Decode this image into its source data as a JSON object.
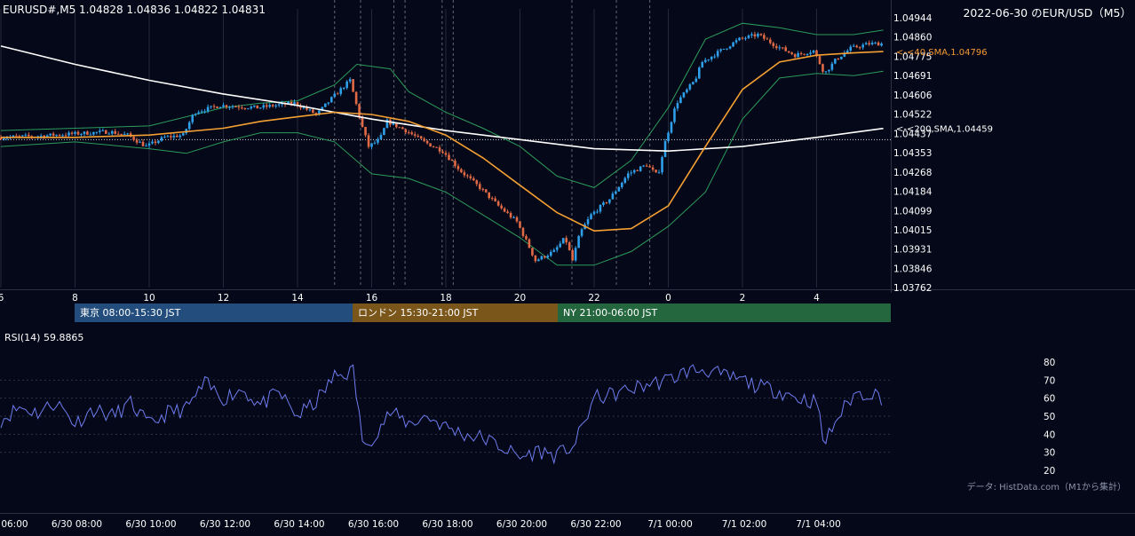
{
  "header": {
    "symbol_info": "EURUSD#,M5 1.04828 1.04836 1.04822 1.04831",
    "title": "2022-06-30 のEUR/USD（M5）"
  },
  "sessions": [
    {
      "label": "東京 08:00-15:30 JST",
      "color": "#234d7d"
    },
    {
      "label": "ロンドン 15:30-21:00 JST",
      "color": "#7a561a"
    },
    {
      "label": "NY 21:00-06:00 JST",
      "color": "#24673f"
    }
  ],
  "rsi_label": "RSI(14) 59.8865",
  "attribution": "データ: HistData.com（M1から集計）",
  "colors": {
    "background": "#050818",
    "candle_up": "#2e9fe8",
    "candle_down": "#e06a45",
    "sma40": "#f5a033",
    "sma200": "#ffffff",
    "bollinger": "#2c9c5c",
    "rsi": "#6e7cf0",
    "label_sma40": "#f59a35"
  },
  "chart_data": [
    {
      "type": "candlestick",
      "title": "2022-06-30 のEUR/USD（M5）",
      "x_tick_labels": [
        "6",
        "8",
        "10",
        "12",
        "14",
        "16",
        "18",
        "20",
        "22",
        "0",
        "2",
        "4"
      ],
      "x_axis_labels": [
        "6/30 06:00",
        "6/30 08:00",
        "6/30 10:00",
        "6/30 12:00",
        "6/30 14:00",
        "6/30 16:00",
        "6/30 18:00",
        "6/30 20:00",
        "6/30 22:00",
        "7/1 00:00",
        "7/1 02:00",
        "7/1 04:00"
      ],
      "y_tick_labels": [
        "1.04944",
        "1.04860",
        "1.04775",
        "1.04691",
        "1.04606",
        "1.04522",
        "1.04437",
        "1.04353",
        "1.04268",
        "1.04184",
        "1.04099",
        "1.04015",
        "1.03931",
        "1.03846",
        "1.03762"
      ],
      "ylim": [
        1.03762,
        1.04944
      ],
      "price_path": [
        [
          6.0,
          1.0442
        ],
        [
          7.0,
          1.04425
        ],
        [
          8.0,
          1.04435
        ],
        [
          9.0,
          1.04445
        ],
        [
          9.5,
          1.0443
        ],
        [
          10.0,
          1.0438
        ],
        [
          10.5,
          1.0442
        ],
        [
          11.0,
          1.0443
        ],
        [
          11.3,
          1.0453
        ],
        [
          12.0,
          1.0456
        ],
        [
          13.0,
          1.0455
        ],
        [
          14.0,
          1.0457
        ],
        [
          14.6,
          1.0452
        ],
        [
          15.0,
          1.0459
        ],
        [
          15.5,
          1.0467
        ],
        [
          15.8,
          1.0448
        ],
        [
          16.0,
          1.0438
        ],
        [
          16.3,
          1.0441
        ],
        [
          16.5,
          1.0449
        ],
        [
          17.0,
          1.0445
        ],
        [
          17.5,
          1.044
        ],
        [
          18.0,
          1.0436
        ],
        [
          18.5,
          1.0427
        ],
        [
          19.0,
          1.042
        ],
        [
          19.5,
          1.0412
        ],
        [
          20.0,
          1.0405
        ],
        [
          20.3,
          1.0395
        ],
        [
          20.5,
          1.0388
        ],
        [
          21.0,
          1.0392
        ],
        [
          21.3,
          1.0398
        ],
        [
          21.5,
          1.0388
        ],
        [
          21.7,
          1.04
        ],
        [
          22.0,
          1.0408
        ],
        [
          22.5,
          1.0415
        ],
        [
          23.0,
          1.0426
        ],
        [
          23.5,
          1.043
        ],
        [
          23.8,
          1.0425
        ],
        [
          24.0,
          1.044
        ],
        [
          24.3,
          1.0457
        ],
        [
          24.8,
          1.0467
        ],
        [
          25.0,
          1.0475
        ],
        [
          25.5,
          1.048
        ],
        [
          26.0,
          1.0485
        ],
        [
          26.5,
          1.0487
        ],
        [
          27.0,
          1.0482
        ],
        [
          27.5,
          1.0478
        ],
        [
          28.0,
          1.048
        ],
        [
          28.3,
          1.047
        ],
        [
          28.6,
          1.0476
        ],
        [
          29.0,
          1.0481
        ],
        [
          29.5,
          1.0483
        ],
        [
          29.8,
          1.04831
        ]
      ],
      "series": [
        {
          "name": "40,SMA",
          "last_value": 1.04796,
          "label": "<-<40,SMA,1.04796",
          "x": [
            6,
            8,
            10,
            12,
            13,
            14,
            15,
            16,
            17,
            18,
            19,
            20,
            21,
            22,
            23,
            24,
            25,
            26,
            27,
            28,
            29,
            29.8
          ],
          "values": [
            1.0442,
            1.0442,
            1.0443,
            1.0446,
            1.0449,
            1.0451,
            1.0453,
            1.0452,
            1.0449,
            1.0443,
            1.0433,
            1.0421,
            1.0409,
            1.0401,
            1.0402,
            1.0412,
            1.0438,
            1.0463,
            1.0475,
            1.0478,
            1.0479,
            1.04796
          ]
        },
        {
          "name": "200,SMA",
          "last_value": 1.04459,
          "label": "<-<200,SMA,1.04459",
          "x": [
            6,
            8,
            10,
            12,
            14,
            15,
            16,
            18,
            20,
            22,
            24,
            26,
            28,
            29.8
          ],
          "values": [
            1.0482,
            1.0474,
            1.0467,
            1.0461,
            1.0456,
            1.0453,
            1.045,
            1.0445,
            1.0441,
            1.0437,
            1.0436,
            1.0438,
            1.0442,
            1.04459
          ]
        }
      ],
      "bollinger_upper": {
        "x": [
          6,
          8,
          10,
          12,
          13,
          14,
          15,
          15.6,
          16.5,
          17,
          18,
          19,
          20,
          21,
          22,
          23,
          24,
          25,
          26,
          27,
          28,
          29,
          29.8
        ],
        "values": [
          1.0445,
          1.0446,
          1.0447,
          1.0455,
          1.0457,
          1.0458,
          1.0465,
          1.0474,
          1.0472,
          1.0462,
          1.0453,
          1.0446,
          1.0438,
          1.0425,
          1.042,
          1.0432,
          1.0455,
          1.0485,
          1.0492,
          1.049,
          1.0487,
          1.0487,
          1.0489
        ]
      },
      "bollinger_lower": {
        "x": [
          6,
          8,
          10,
          11,
          12,
          13,
          14,
          15,
          16,
          17,
          18,
          19,
          20,
          21,
          22,
          23,
          24,
          25,
          26,
          27,
          28,
          29,
          29.8
        ],
        "values": [
          1.0438,
          1.044,
          1.0437,
          1.0435,
          1.044,
          1.0444,
          1.0444,
          1.044,
          1.0426,
          1.0424,
          1.0418,
          1.0408,
          1.0398,
          1.0386,
          1.0386,
          1.0392,
          1.0403,
          1.0418,
          1.045,
          1.0468,
          1.047,
          1.0469,
          1.0471
        ]
      },
      "reference_level": 1.0441,
      "event_lines": [
        15.0,
        15.7,
        16.6,
        16.9,
        17.9,
        18.2,
        21.4,
        22.6,
        23.5
      ]
    },
    {
      "type": "line",
      "title": "RSI(14) 59.8865",
      "ylim": [
        20,
        80
      ],
      "y_tick_labels": [
        "80",
        "70",
        "60",
        "50",
        "40",
        "30",
        "20"
      ],
      "series": [
        {
          "name": "RSI(14)",
          "x": [
            6,
            6.5,
            7,
            7.5,
            8,
            8.5,
            9,
            9.5,
            10,
            10.5,
            11,
            11.5,
            12,
            12.5,
            13,
            13.5,
            14,
            14.5,
            15,
            15.5,
            15.8,
            16,
            16.5,
            17,
            17.5,
            18,
            18.5,
            19,
            19.5,
            20,
            20.5,
            21,
            21.5,
            22,
            22.5,
            23,
            23.5,
            24,
            24.5,
            25,
            25.5,
            26,
            26.5,
            27,
            27.5,
            28,
            28.2,
            28.5,
            29,
            29.5,
            29.8
          ],
          "values": [
            48,
            55,
            52,
            58,
            46,
            54,
            50,
            57,
            45,
            52,
            54,
            68,
            60,
            65,
            56,
            63,
            50,
            58,
            72,
            75,
            30,
            38,
            52,
            46,
            50,
            44,
            40,
            38,
            33,
            27,
            31,
            28,
            35,
            60,
            62,
            65,
            68,
            70,
            75,
            76,
            72,
            70,
            66,
            64,
            60,
            58,
            34,
            47,
            62,
            63,
            59.89
          ]
        }
      ]
    }
  ]
}
